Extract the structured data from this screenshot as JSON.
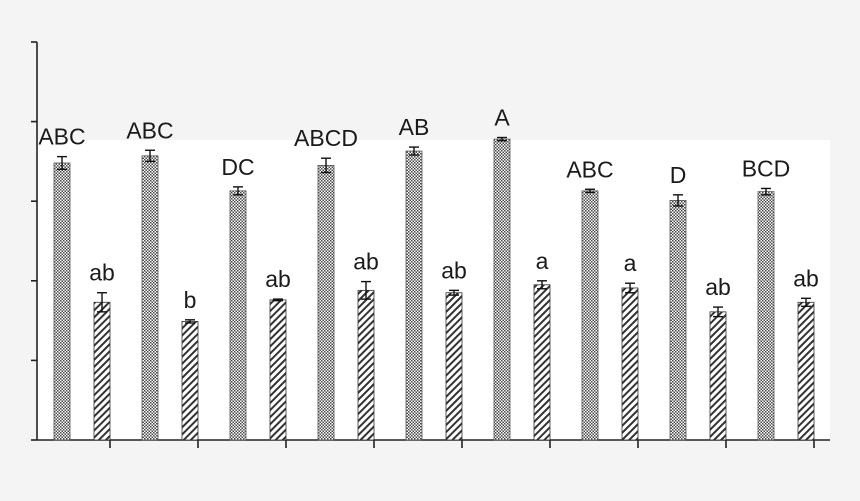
{
  "chart_data": {
    "type": "bar",
    "title": "",
    "xlabel": "",
    "ylabel": "",
    "ylim": [
      0,
      5
    ],
    "y_ticks": [
      0,
      1,
      2,
      3,
      4,
      5
    ],
    "grid": false,
    "legend": "none",
    "group_count": 9,
    "series": [
      {
        "pattern": "crosshatch",
        "fill_color": "#555555",
        "values": [
          3.48,
          3.57,
          3.13,
          3.45,
          3.63,
          3.78,
          3.13,
          3.01,
          3.12
        ],
        "errors": [
          0.08,
          0.07,
          0.05,
          0.09,
          0.05,
          0.02,
          0.02,
          0.07,
          0.04
        ],
        "labels": [
          "ABC",
          "ABC",
          "DC",
          "ABCD",
          "AB",
          "A",
          "ABC",
          "D",
          "BCD"
        ]
      },
      {
        "pattern": "diagonal",
        "fill_color": "#333333",
        "values": [
          1.73,
          1.49,
          1.76,
          1.88,
          1.85,
          1.95,
          1.91,
          1.61,
          1.73
        ],
        "errors": [
          0.12,
          0.02,
          0.01,
          0.11,
          0.03,
          0.05,
          0.06,
          0.06,
          0.05
        ],
        "labels": [
          "ab",
          "b",
          "ab",
          "ab",
          "ab",
          "a",
          "a",
          "ab",
          "ab"
        ]
      }
    ]
  }
}
